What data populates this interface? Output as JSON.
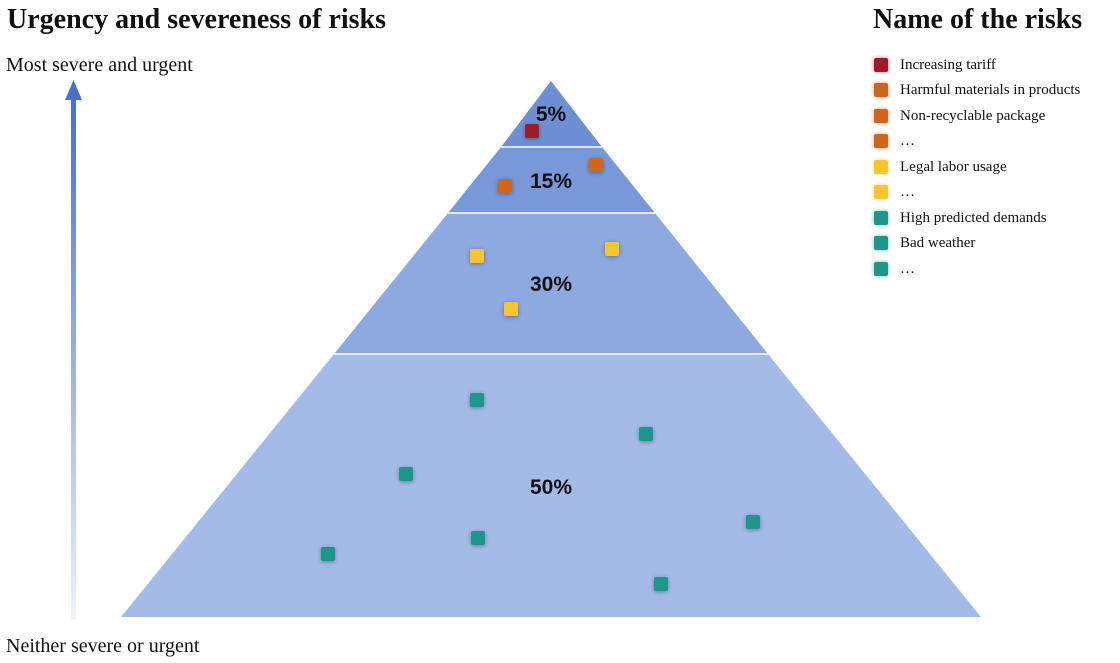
{
  "header": {
    "title": "Urgency and severeness of risks",
    "legend_title": "Name of the risks"
  },
  "axis": {
    "top_label": "Most severe and urgent",
    "bottom_label": "Neither severe or urgent"
  },
  "colors": {
    "red": "#9e1a2a",
    "orange": "#d0661e",
    "yellow": "#f7c531",
    "teal": "#1e978a",
    "tier_top": "#6f8fd5",
    "tier_second": "#7998d9",
    "tier_third": "#8ea9e0",
    "tier_base": "#a4bbe7",
    "arrow_dark": "#4a6fc4",
    "arrow_light": "#eef2fc"
  },
  "pyramid": {
    "tiers": [
      {
        "label": "5%"
      },
      {
        "label": "15%"
      },
      {
        "label": "30%"
      },
      {
        "label": "50%"
      }
    ]
  },
  "legend": {
    "items": [
      {
        "label": "Increasing tariff",
        "color": "#9e1a2a",
        "icon": "square-marker-red"
      },
      {
        "label": "Harmful materials in products",
        "color": "#d0661e",
        "icon": "square-marker-orange"
      },
      {
        "label": "Non-recyclable package",
        "color": "#d0661e",
        "icon": "square-marker-orange"
      },
      {
        "label": "…",
        "color": "#d0661e",
        "icon": "square-marker-orange"
      },
      {
        "label": "Legal labor usage",
        "color": "#f7c531",
        "icon": "square-marker-yellow"
      },
      {
        "label": "…",
        "color": "#f7c531",
        "icon": "square-marker-yellow"
      },
      {
        "label": "High predicted demands",
        "color": "#1e978a",
        "icon": "square-marker-teal"
      },
      {
        "label": "Bad weather",
        "color": "#1e978a",
        "icon": "square-marker-teal"
      },
      {
        "label": "…",
        "color": "#1e978a",
        "icon": "square-marker-teal"
      }
    ]
  }
}
